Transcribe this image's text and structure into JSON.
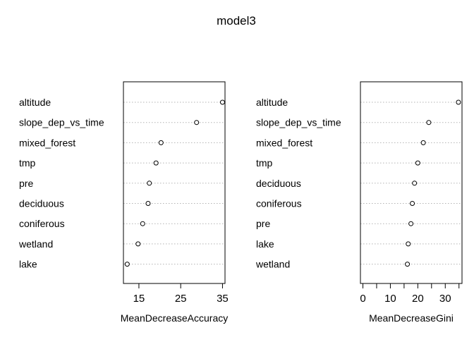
{
  "title": "model3",
  "chart_data": [
    {
      "type": "scatter",
      "subtype": "dotchart",
      "xlabel": "MeanDecreaseAccuracy",
      "xticks": [
        15,
        25,
        35
      ],
      "xlim": [
        11.3,
        35.6
      ],
      "categories": [
        "altitude",
        "slope_dep_vs_time",
        "mixed_forest",
        "tmp",
        "pre",
        "deciduous",
        "coniferous",
        "wetland",
        "lake"
      ],
      "values": [
        35.0,
        28.8,
        20.3,
        19.1,
        17.5,
        17.2,
        15.9,
        14.8,
        12.2
      ],
      "grid": "dotted horizontal lines",
      "marker": "open circle"
    },
    {
      "type": "scatter",
      "subtype": "dotchart",
      "xlabel": "MeanDecreaseGini",
      "xticks": [
        0,
        10,
        20,
        30
      ],
      "xticks_minor": [
        5,
        15,
        25,
        35
      ],
      "xlim": [
        -0.9,
        36.1
      ],
      "categories": [
        "altitude",
        "slope_dep_vs_time",
        "mixed_forest",
        "tmp",
        "deciduous",
        "coniferous",
        "pre",
        "lake",
        "wetland"
      ],
      "values": [
        34.8,
        24.0,
        22.0,
        20.0,
        18.8,
        18.0,
        17.5,
        16.5,
        16.2
      ],
      "grid": "dotted horizontal lines",
      "marker": "open circle"
    }
  ]
}
